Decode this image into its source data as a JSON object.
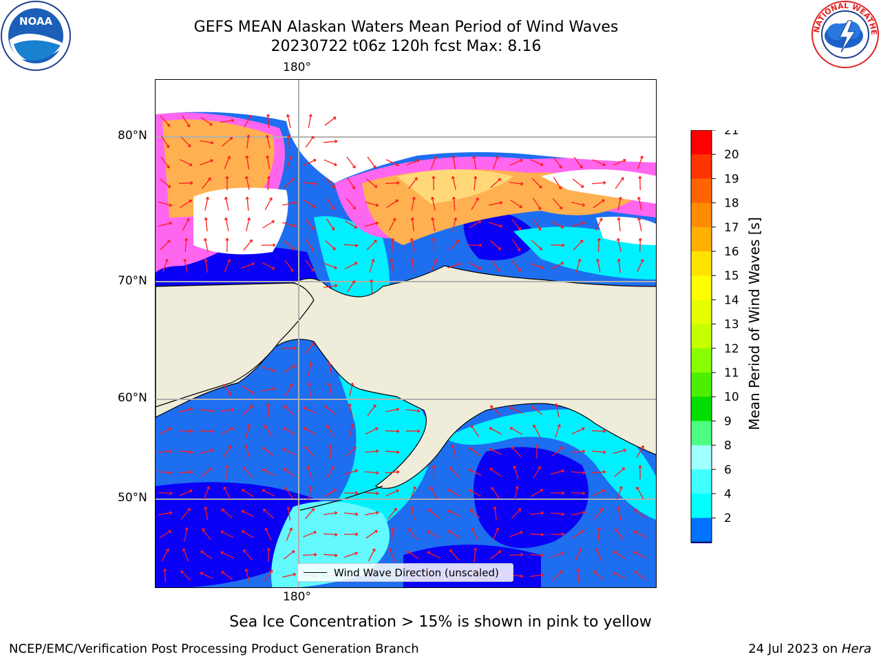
{
  "title": {
    "line1": "GEFS MEAN Alaskan Waters Mean Period of Wind Waves",
    "line2": "20230722 t06z 120h fcst   Max: 8.16"
  },
  "map": {
    "lon_labels": {
      "top": "180°",
      "bottom": "180°"
    },
    "lat_labels": [
      "80°N",
      "70°N",
      "60°N",
      "50°N"
    ],
    "legend_label": "Wind Wave Direction (unscaled)",
    "colors": {
      "land": "#efedda",
      "deep_blue": "#0a00f5",
      "blue": "#1e6ef0",
      "cyan": "#00f0ff",
      "light_cyan": "#64f8ff",
      "ice_pink": "#ff66f0",
      "ice_orange": "#ffb050",
      "ice_yellow": "#ffd878",
      "arrow": "#ff1a1a"
    }
  },
  "colorbar": {
    "label": "Mean Period of Wind Waves [s]",
    "ticks": [
      "21",
      "20",
      "19",
      "18",
      "17",
      "16",
      "15",
      "14",
      "13",
      "12",
      "11",
      "10",
      "9",
      "8",
      "6",
      "4",
      "2"
    ],
    "colors": [
      "#fe0000",
      "#ff3300",
      "#ff6400",
      "#ff8c00",
      "#ffb000",
      "#ffe300",
      "#ffff00",
      "#e5ff00",
      "#c6ff00",
      "#88ff00",
      "#4cef00",
      "#00df00",
      "#4cff80",
      "#a0ffff",
      "#40ffff",
      "#00ffff",
      "#0072ff"
    ],
    "extend_color": "#1400ff"
  },
  "ice_note": "Sea Ice Concentration > 15% is shown in pink to yellow",
  "footer": {
    "left": "NCEP/EMC/Verification Post Processing Product Generation Branch",
    "date": "24 Jul 2023 on ",
    "host": "Hera"
  },
  "logos": {
    "noaa_text": "NOAA",
    "noaa_ring": "NATIONAL OCEANIC AND ATMOSPHERIC ADMINISTRATION · U.S. DEPARTMENT OF COMMERCE",
    "nws_ring": "NATIONAL WEATHER SERVICE"
  }
}
